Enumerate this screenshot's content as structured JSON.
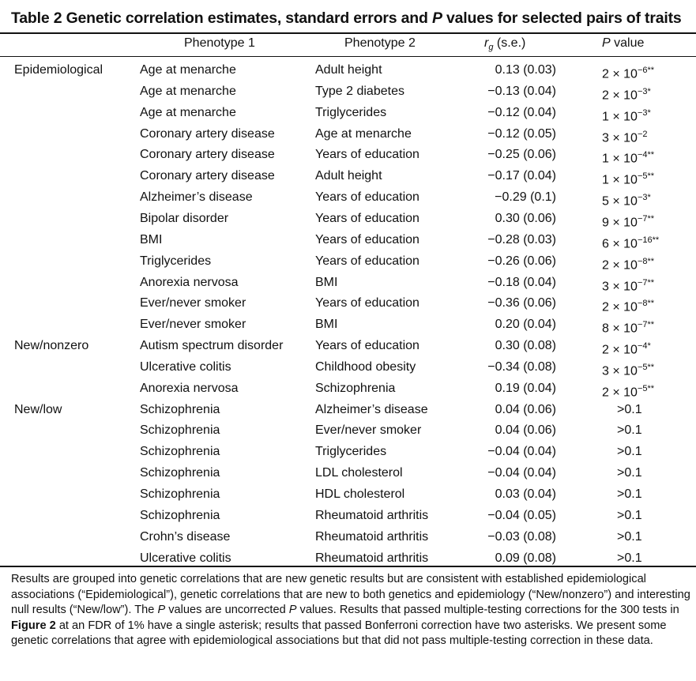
{
  "title": {
    "prefix": "Table 2  Genetic correlation estimates, standard errors and ",
    "p_italic": "P",
    "suffix": " values for selected pairs of traits"
  },
  "columns": {
    "phenotype1": "Phenotype 1",
    "phenotype2": "Phenotype 2",
    "rg_symbol": "r",
    "rg_sub": "g",
    "rg_suffix": " (s.e.)",
    "p_italic": "P",
    "p_suffix": " value"
  },
  "groups": [
    {
      "label": "Epidemiological",
      "start": 0
    },
    {
      "label": "New/nonzero",
      "start": 13
    },
    {
      "label": "New/low",
      "start": 16
    }
  ],
  "rows": [
    {
      "p1": "Age at menarche",
      "p2": "Adult height",
      "rg": "0.13 (0.03)",
      "pval": "2 × 10",
      "exp": "−6**"
    },
    {
      "p1": "Age at menarche",
      "p2": "Type 2 diabetes",
      "rg": "−0.13 (0.04)",
      "pval": "2 × 10",
      "exp": "−3*"
    },
    {
      "p1": "Age at menarche",
      "p2": "Triglycerides",
      "rg": "−0.12 (0.04)",
      "pval": "1 × 10",
      "exp": "−3*"
    },
    {
      "p1": "Coronary artery disease",
      "p2": "Age at menarche",
      "rg": "−0.12 (0.05)",
      "pval": "3 × 10",
      "exp": "−2"
    },
    {
      "p1": "Coronary artery disease",
      "p2": "Years of education",
      "rg": "−0.25 (0.06)",
      "pval": "1 × 10",
      "exp": "−4**"
    },
    {
      "p1": "Coronary artery disease",
      "p2": "Adult height",
      "rg": "−0.17 (0.04)",
      "pval": "1 × 10",
      "exp": "−5**"
    },
    {
      "p1": "Alzheimer’s disease",
      "p2": "Years of education",
      "rg": "−0.29 (0.1)",
      "pval": "5 × 10",
      "exp": "−3*"
    },
    {
      "p1": "Bipolar disorder",
      "p2": "Years of education",
      "rg": "0.30 (0.06)",
      "pval": "9 × 10",
      "exp": "−7**"
    },
    {
      "p1": "BMI",
      "p2": "Years of education",
      "rg": "−0.28 (0.03)",
      "pval": "6 × 10",
      "exp": "−16**"
    },
    {
      "p1": "Triglycerides",
      "p2": "Years of education",
      "rg": "−0.26 (0.06)",
      "pval": "2 × 10",
      "exp": "−8**"
    },
    {
      "p1": "Anorexia nervosa",
      "p2": "BMI",
      "rg": "−0.18 (0.04)",
      "pval": "3 × 10",
      "exp": "−7**"
    },
    {
      "p1": "Ever/never smoker",
      "p2": "Years of education",
      "rg": "−0.36 (0.06)",
      "pval": "2 × 10",
      "exp": "−8**"
    },
    {
      "p1": "Ever/never smoker",
      "p2": "BMI",
      "rg": "0.20 (0.04)",
      "pval": "8 × 10",
      "exp": "−7**"
    },
    {
      "p1": "Autism spectrum disorder",
      "p2": "Years of education",
      "rg": "0.30 (0.08)",
      "pval": "2 × 10",
      "exp": "−4*"
    },
    {
      "p1": "Ulcerative colitis",
      "p2": "Childhood obesity",
      "rg": "−0.34 (0.08)",
      "pval": "3 × 10",
      "exp": "−5**"
    },
    {
      "p1": "Anorexia nervosa",
      "p2": "Schizophrenia",
      "rg": "0.19 (0.04)",
      "pval": "2 × 10",
      "exp": "−5**"
    },
    {
      "p1": "Schizophrenia",
      "p2": "Alzheimer’s disease",
      "rg": "0.04 (0.06)",
      "pval": ">0.1",
      "exp": ""
    },
    {
      "p1": "Schizophrenia",
      "p2": "Ever/never smoker",
      "rg": "0.04 (0.06)",
      "pval": ">0.1",
      "exp": ""
    },
    {
      "p1": "Schizophrenia",
      "p2": "Triglycerides",
      "rg": "−0.04 (0.04)",
      "pval": ">0.1",
      "exp": ""
    },
    {
      "p1": "Schizophrenia",
      "p2": "LDL cholesterol",
      "rg": "−0.04 (0.04)",
      "pval": ">0.1",
      "exp": ""
    },
    {
      "p1": "Schizophrenia",
      "p2": "HDL cholesterol",
      "rg": "0.03 (0.04)",
      "pval": ">0.1",
      "exp": ""
    },
    {
      "p1": "Schizophrenia",
      "p2": "Rheumatoid arthritis",
      "rg": "−0.04 (0.05)",
      "pval": ">0.1",
      "exp": ""
    },
    {
      "p1": "Crohn’s disease",
      "p2": "Rheumatoid arthritis",
      "rg": "−0.03 (0.08)",
      "pval": ">0.1",
      "exp": ""
    },
    {
      "p1": "Ulcerative colitis",
      "p2": "Rheumatoid arthritis",
      "rg": "0.09 (0.08)",
      "pval": ">0.1",
      "exp": ""
    }
  ],
  "footnote": {
    "t1": "Results are grouped into genetic correlations that are new genetic results but are consistent with established epidemiological associations (“Epidemiological”), genetic correlations that are new to both genetics and epidemiology (“New/nonzero”) and interesting null results (“New/low”). The ",
    "p1": "P",
    "t2": " values are uncorrected ",
    "p2": "P",
    "t3": " values. Results that passed multiple-testing corrections for the 300 tests in ",
    "fig": "Figure 2",
    "t4": " at an FDR of 1% have a single asterisk; results that passed Bonferroni correction have two asterisks. We present some genetic correlations that agree with epidemiological associations but that did not pass multiple-testing correction in these data."
  }
}
